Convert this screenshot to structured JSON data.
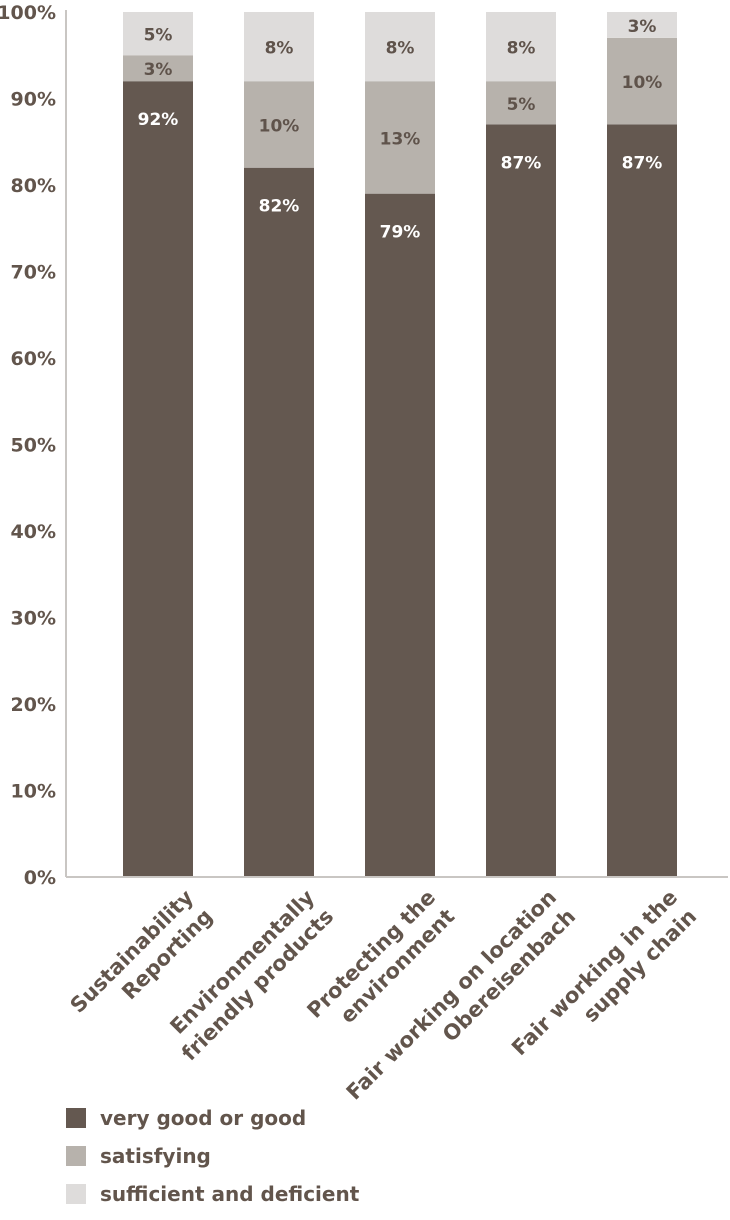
{
  "chart_data": {
    "type": "bar",
    "stacked": true,
    "categories": [
      [
        "Sustainability",
        "Reporting"
      ],
      [
        "Environmentally",
        "friendly products"
      ],
      [
        "Protecting the",
        "environment"
      ],
      [
        "Fair working on location",
        "Obereisenbach"
      ],
      [
        "Fair working in the",
        "supply chain"
      ]
    ],
    "series": [
      {
        "name": "very good or good",
        "color": "#645850",
        "label_color": "#ffffff",
        "values": [
          92,
          82,
          79,
          87,
          87
        ],
        "labels": [
          "92%",
          "82%",
          "79%",
          "87%",
          "87%"
        ]
      },
      {
        "name": "satisfying",
        "color": "#b7b2ac",
        "label_color": "#5f534b",
        "values": [
          3,
          10,
          13,
          5,
          10
        ],
        "labels": [
          "3%",
          "10%",
          "13%",
          "5%",
          "10%"
        ]
      },
      {
        "name": "sufficient and deficient",
        "color": "#dedcdb",
        "label_color": "#5f534b",
        "values": [
          5,
          8,
          8,
          8,
          3
        ],
        "labels": [
          "5%",
          "8%",
          "8%",
          "8%",
          "3%"
        ]
      }
    ],
    "ylim": [
      0,
      100
    ],
    "yticks": [
      "0%",
      "10%",
      "20%",
      "30%",
      "40%",
      "50%",
      "60%",
      "70%",
      "80%",
      "90%",
      "100%"
    ],
    "axis_color": "#c9c6c3",
    "tick_label_color": "#62554c",
    "grid": false,
    "legend_position": "bottom-left",
    "title": "",
    "xlabel": "",
    "ylabel": ""
  }
}
